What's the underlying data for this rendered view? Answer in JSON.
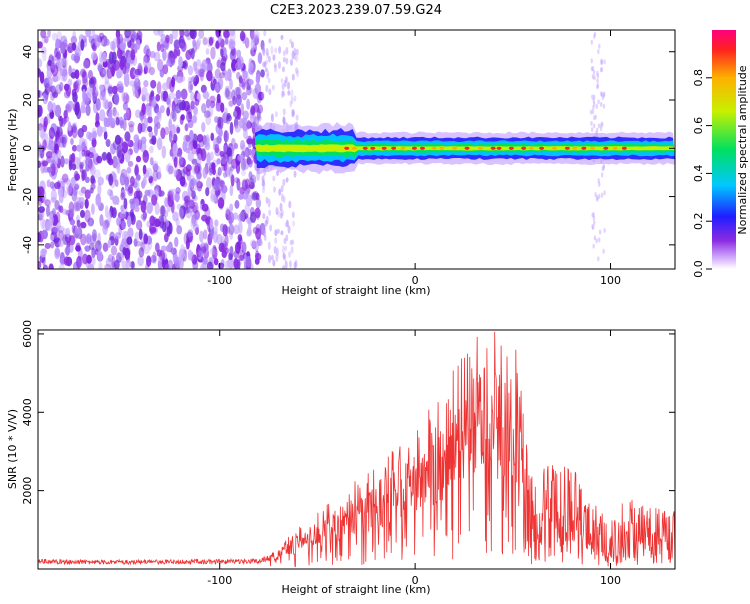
{
  "title": "C2E3.2023.239.07.59.G24",
  "chart_data": [
    {
      "type": "heatmap",
      "xlabel": "Height of straight line (km)",
      "ylabel": "Frequency (Hz)",
      "xlim": [
        -193,
        133
      ],
      "ylim": [
        -50,
        49
      ],
      "xticks": [
        -100,
        0,
        100
      ],
      "xtick_labels": [
        "-100",
        "0",
        "100"
      ],
      "yticks": [
        -40,
        -20,
        0,
        20,
        40
      ],
      "ytick_labels": [
        "-40",
        "-20",
        "0",
        "20",
        "40"
      ],
      "grid": false,
      "colorbar": {
        "label": "Normalized spectral amplitude",
        "range": [
          0,
          1
        ],
        "ticks": [
          0.0,
          0.2,
          0.4,
          0.6,
          0.8
        ],
        "tick_labels": [
          "0.0",
          "0.2",
          "0.4",
          "0.6",
          "0.8"
        ],
        "colormap": [
          "#ffffff",
          "#d9b8ff",
          "#8a2be2",
          "#1e1eff",
          "#00c8ff",
          "#00e060",
          "#c8f000",
          "#ffb000",
          "#ff2020",
          "#ff0080"
        ]
      },
      "features": {
        "noise_region_x": [
          -193,
          -78
        ],
        "noise_sparse_x": [
          -78,
          -60
        ],
        "noise_band_x": [
          90,
          97
        ],
        "carrier_start_x": -82,
        "carrier_end_x": 133,
        "carrier_freq_hz": 0,
        "peak_region_x": [
          -35,
          110
        ]
      }
    },
    {
      "type": "line",
      "xlabel": "Height of straight line (km)",
      "ylabel": "SNR (10 * V/V)",
      "xlim": [
        -193,
        133
      ],
      "ylim": [
        0,
        6100
      ],
      "xticks": [
        -100,
        0,
        100
      ],
      "xtick_labels": [
        "-100",
        "0",
        "100"
      ],
      "yticks": [
        2000,
        4000,
        6000
      ],
      "ytick_labels": [
        "2000",
        "4000",
        "6000"
      ],
      "grid": false,
      "color": "#ee3333",
      "series": [
        {
          "x": [
            -193,
            -150,
            -100,
            -80,
            -70,
            -60,
            -50,
            -40,
            -30,
            -20,
            -10,
            0,
            10,
            20,
            30,
            35,
            40,
            50,
            55,
            60,
            70,
            80,
            90,
            100,
            110,
            120,
            133
          ],
          "values": [
            250,
            230,
            250,
            260,
            500,
            900,
            1200,
            1600,
            1900,
            2200,
            2600,
            3000,
            3600,
            4300,
            4900,
            5200,
            5100,
            4900,
            4500,
            2300,
            2800,
            2700,
            1800,
            1200,
            2000,
            1600,
            1500
          ]
        }
      ]
    }
  ]
}
